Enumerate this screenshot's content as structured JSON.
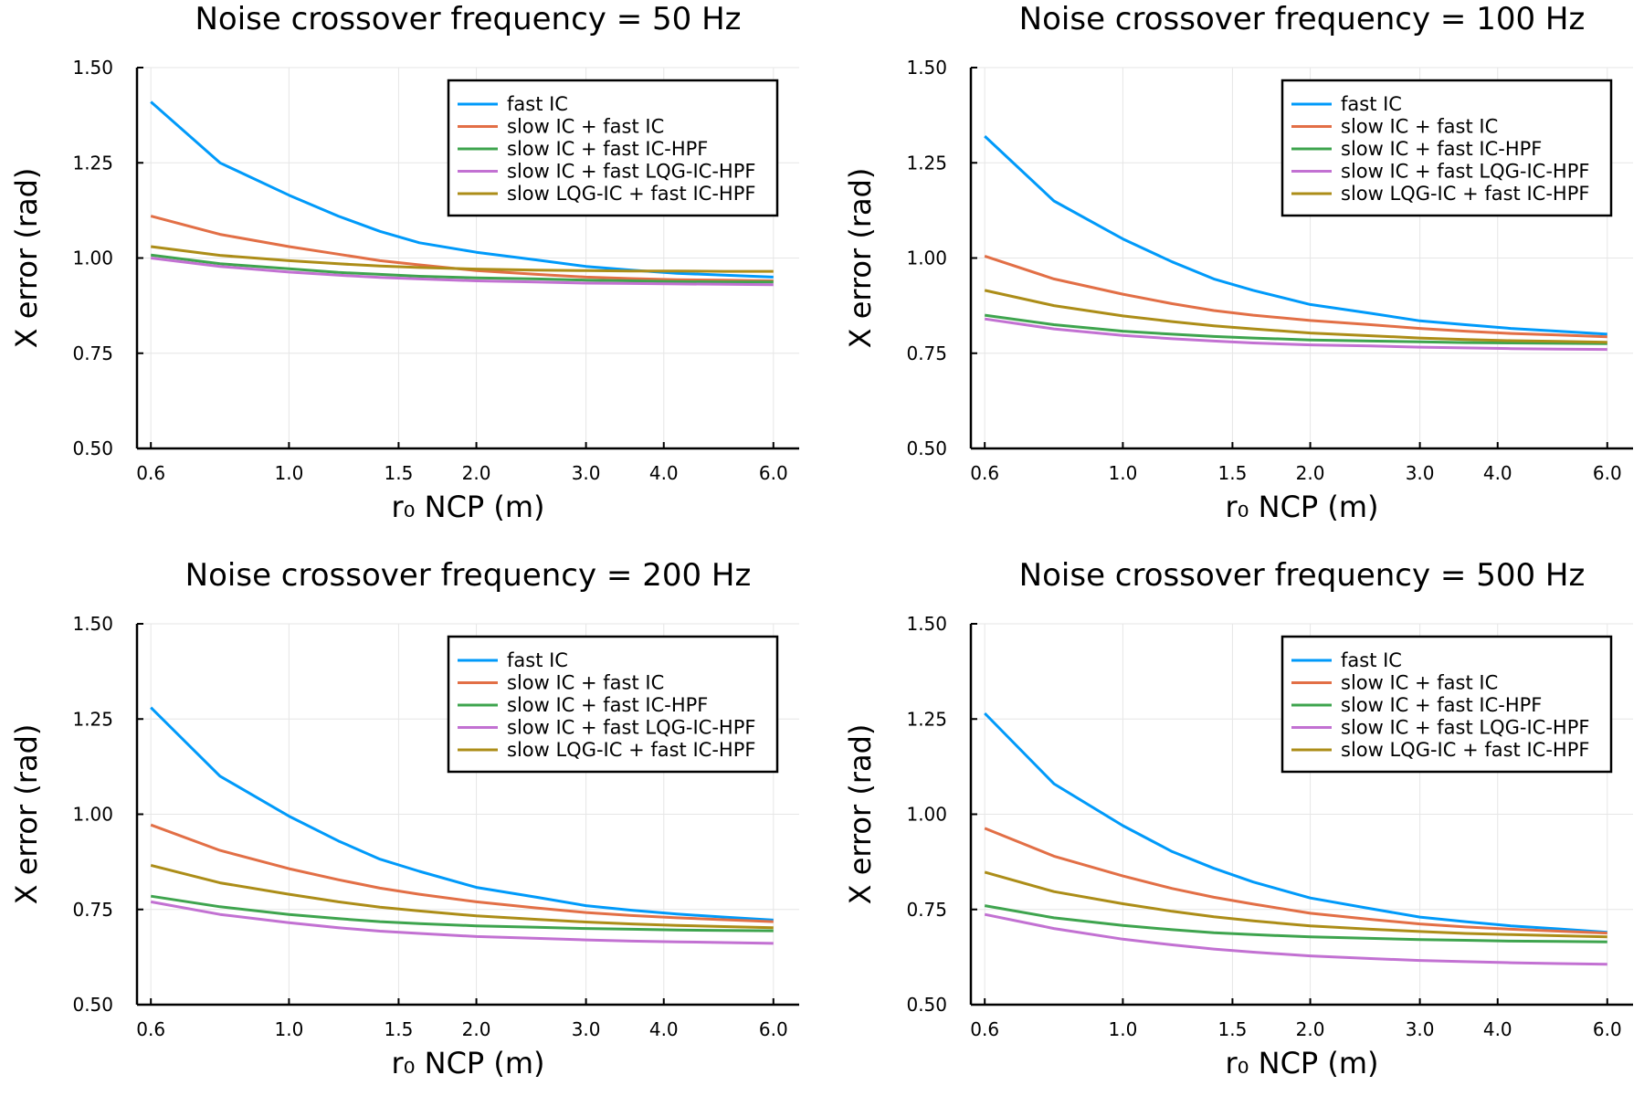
{
  "chart_data": [
    {
      "type": "line",
      "title": "Noise crossover frequency = 50 Hz",
      "xlabel": "r₀ NCP (m)",
      "ylabel": "X error (rad)",
      "xscale": "log",
      "xlim": [
        0.57,
        6.6
      ],
      "ylim": [
        0.5,
        1.5
      ],
      "xticks": [
        0.6,
        1.0,
        1.5,
        2.0,
        3.0,
        4.0,
        6.0
      ],
      "xtick_labels": [
        "0.6",
        "1.0",
        "1.5",
        "2.0",
        "3.0",
        "4.0",
        "6.0"
      ],
      "yticks": [
        0.5,
        0.75,
        1.0,
        1.25,
        1.5
      ],
      "ytick_labels": [
        "0.50",
        "0.75",
        "1.00",
        "1.25",
        "1.50"
      ],
      "grid": true,
      "legend": "top-right",
      "x": [
        0.6,
        0.775,
        1.0,
        1.2,
        1.4,
        1.62,
        2.0,
        2.5,
        3.0,
        3.55,
        4.2,
        5.0,
        6.0
      ],
      "series": [
        {
          "name": "fast IC",
          "color": "#009AFA",
          "values": [
            1.41,
            1.25,
            1.165,
            1.11,
            1.07,
            1.04,
            1.015,
            0.995,
            0.978,
            0.968,
            0.96,
            0.955,
            0.95
          ]
        },
        {
          "name": "slow IC + fast IC",
          "color": "#E26F46",
          "values": [
            1.11,
            1.062,
            1.03,
            1.01,
            0.993,
            0.982,
            0.967,
            0.957,
            0.95,
            0.946,
            0.943,
            0.942,
            0.94
          ]
        },
        {
          "name": "slow IC + fast IC-HPF",
          "color": "#3EA44E",
          "values": [
            1.008,
            0.985,
            0.972,
            0.962,
            0.957,
            0.952,
            0.948,
            0.945,
            0.942,
            0.94,
            0.938,
            0.937,
            0.937
          ]
        },
        {
          "name": "slow IC + fast LQG-IC-HPF",
          "color": "#C271D2",
          "values": [
            1.0,
            0.978,
            0.963,
            0.955,
            0.949,
            0.945,
            0.94,
            0.937,
            0.934,
            0.933,
            0.932,
            0.931,
            0.93
          ]
        },
        {
          "name": "slow LQG-IC + fast IC-HPF",
          "color": "#AC8D18",
          "values": [
            1.03,
            1.007,
            0.993,
            0.985,
            0.979,
            0.975,
            0.971,
            0.968,
            0.967,
            0.966,
            0.966,
            0.965,
            0.965
          ]
        }
      ]
    },
    {
      "type": "line",
      "title": "Noise crossover frequency = 100 Hz",
      "xlabel": "r₀ NCP (m)",
      "ylabel": "X error (rad)",
      "xscale": "log",
      "xlim": [
        0.57,
        6.6
      ],
      "ylim": [
        0.5,
        1.5
      ],
      "xticks": [
        0.6,
        1.0,
        1.5,
        2.0,
        3.0,
        4.0,
        6.0
      ],
      "xtick_labels": [
        "0.6",
        "1.0",
        "1.5",
        "2.0",
        "3.0",
        "4.0",
        "6.0"
      ],
      "yticks": [
        0.5,
        0.75,
        1.0,
        1.25,
        1.5
      ],
      "ytick_labels": [
        "0.50",
        "0.75",
        "1.00",
        "1.25",
        "1.50"
      ],
      "grid": true,
      "legend": "top-right",
      "x": [
        0.6,
        0.775,
        1.0,
        1.2,
        1.4,
        1.62,
        2.0,
        2.5,
        3.0,
        3.55,
        4.2,
        5.0,
        6.0
      ],
      "series": [
        {
          "name": "fast IC",
          "color": "#009AFA",
          "values": [
            1.32,
            1.15,
            1.05,
            0.99,
            0.945,
            0.915,
            0.878,
            0.855,
            0.835,
            0.825,
            0.815,
            0.808,
            0.8
          ]
        },
        {
          "name": "slow IC + fast IC",
          "color": "#E26F46",
          "values": [
            1.005,
            0.945,
            0.905,
            0.88,
            0.862,
            0.85,
            0.836,
            0.825,
            0.815,
            0.808,
            0.802,
            0.798,
            0.793
          ]
        },
        {
          "name": "slow IC + fast IC-HPF",
          "color": "#3EA44E",
          "values": [
            0.85,
            0.825,
            0.808,
            0.8,
            0.794,
            0.79,
            0.785,
            0.782,
            0.78,
            0.778,
            0.777,
            0.776,
            0.775
          ]
        },
        {
          "name": "slow IC + fast LQG-IC-HPF",
          "color": "#C271D2",
          "values": [
            0.84,
            0.814,
            0.797,
            0.788,
            0.782,
            0.777,
            0.772,
            0.769,
            0.766,
            0.764,
            0.762,
            0.761,
            0.76
          ]
        },
        {
          "name": "slow LQG-IC + fast IC-HPF",
          "color": "#AC8D18",
          "values": [
            0.915,
            0.875,
            0.848,
            0.833,
            0.822,
            0.814,
            0.803,
            0.796,
            0.79,
            0.786,
            0.783,
            0.781,
            0.779
          ]
        }
      ]
    },
    {
      "type": "line",
      "title": "Noise crossover frequency = 200 Hz",
      "xlabel": "r₀ NCP (m)",
      "ylabel": "X error (rad)",
      "xscale": "log",
      "xlim": [
        0.57,
        6.6
      ],
      "ylim": [
        0.5,
        1.5
      ],
      "xticks": [
        0.6,
        1.0,
        1.5,
        2.0,
        3.0,
        4.0,
        6.0
      ],
      "xtick_labels": [
        "0.6",
        "1.0",
        "1.5",
        "2.0",
        "3.0",
        "4.0",
        "6.0"
      ],
      "yticks": [
        0.5,
        0.75,
        1.0,
        1.25,
        1.5
      ],
      "ytick_labels": [
        "0.50",
        "0.75",
        "1.00",
        "1.25",
        "1.50"
      ],
      "grid": true,
      "legend": "top-right",
      "x": [
        0.6,
        0.775,
        1.0,
        1.2,
        1.4,
        1.62,
        2.0,
        2.5,
        3.0,
        3.55,
        4.2,
        5.0,
        6.0
      ],
      "series": [
        {
          "name": "fast IC",
          "color": "#009AFA",
          "values": [
            1.28,
            1.1,
            0.995,
            0.93,
            0.882,
            0.85,
            0.808,
            0.782,
            0.76,
            0.748,
            0.738,
            0.73,
            0.722
          ]
        },
        {
          "name": "slow IC + fast IC",
          "color": "#E26F46",
          "values": [
            0.972,
            0.905,
            0.857,
            0.828,
            0.806,
            0.79,
            0.77,
            0.754,
            0.742,
            0.734,
            0.728,
            0.723,
            0.718
          ]
        },
        {
          "name": "slow IC + fast IC-HPF",
          "color": "#3EA44E",
          "values": [
            0.785,
            0.757,
            0.737,
            0.726,
            0.718,
            0.713,
            0.707,
            0.703,
            0.7,
            0.698,
            0.696,
            0.695,
            0.694
          ]
        },
        {
          "name": "slow IC + fast LQG-IC-HPF",
          "color": "#C271D2",
          "values": [
            0.77,
            0.737,
            0.715,
            0.702,
            0.693,
            0.687,
            0.679,
            0.674,
            0.67,
            0.667,
            0.665,
            0.663,
            0.661
          ]
        },
        {
          "name": "slow LQG-IC + fast IC-HPF",
          "color": "#AC8D18",
          "values": [
            0.866,
            0.82,
            0.79,
            0.77,
            0.756,
            0.746,
            0.733,
            0.724,
            0.717,
            0.712,
            0.708,
            0.705,
            0.702
          ]
        }
      ]
    },
    {
      "type": "line",
      "title": "Noise crossover frequency = 500 Hz",
      "xlabel": "r₀ NCP (m)",
      "ylabel": "X error (rad)",
      "xscale": "log",
      "xlim": [
        0.57,
        6.6
      ],
      "ylim": [
        0.5,
        1.5
      ],
      "xticks": [
        0.6,
        1.0,
        1.5,
        2.0,
        3.0,
        4.0,
        6.0
      ],
      "xtick_labels": [
        "0.6",
        "1.0",
        "1.5",
        "2.0",
        "3.0",
        "4.0",
        "6.0"
      ],
      "yticks": [
        0.5,
        0.75,
        1.0,
        1.25,
        1.5
      ],
      "ytick_labels": [
        "0.50",
        "0.75",
        "1.00",
        "1.25",
        "1.50"
      ],
      "grid": true,
      "legend": "top-right",
      "x": [
        0.6,
        0.775,
        1.0,
        1.2,
        1.4,
        1.62,
        2.0,
        2.5,
        3.0,
        3.55,
        4.2,
        5.0,
        6.0
      ],
      "series": [
        {
          "name": "fast IC",
          "color": "#009AFA",
          "values": [
            1.265,
            1.08,
            0.97,
            0.902,
            0.858,
            0.822,
            0.78,
            0.752,
            0.73,
            0.718,
            0.707,
            0.699,
            0.69
          ]
        },
        {
          "name": "slow IC + fast IC",
          "color": "#E26F46",
          "values": [
            0.963,
            0.89,
            0.838,
            0.805,
            0.782,
            0.764,
            0.74,
            0.724,
            0.712,
            0.704,
            0.698,
            0.693,
            0.688
          ]
        },
        {
          "name": "slow IC + fast IC-HPF",
          "color": "#3EA44E",
          "values": [
            0.76,
            0.728,
            0.708,
            0.697,
            0.689,
            0.684,
            0.678,
            0.674,
            0.671,
            0.669,
            0.667,
            0.666,
            0.665
          ]
        },
        {
          "name": "slow IC + fast LQG-IC-HPF",
          "color": "#C271D2",
          "values": [
            0.737,
            0.7,
            0.672,
            0.657,
            0.646,
            0.638,
            0.628,
            0.621,
            0.616,
            0.613,
            0.61,
            0.608,
            0.606
          ]
        },
        {
          "name": "slow LQG-IC + fast IC-HPF",
          "color": "#AC8D18",
          "values": [
            0.848,
            0.797,
            0.765,
            0.745,
            0.731,
            0.72,
            0.707,
            0.698,
            0.692,
            0.687,
            0.684,
            0.681,
            0.678
          ]
        }
      ]
    }
  ]
}
